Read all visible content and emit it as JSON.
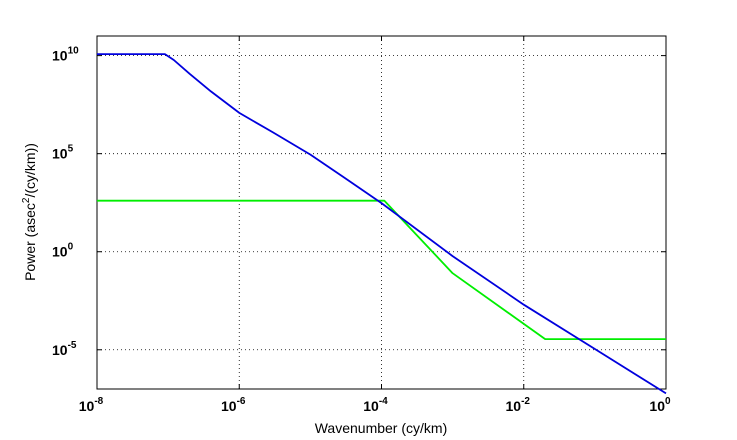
{
  "chart_data": {
    "type": "line",
    "title": "",
    "xlabel": "Wavenumber (cy/km)",
    "ylabel_main": "Power (asec",
    "ylabel_sup": "2",
    "ylabel_rest": "/(cy/km))",
    "x_scale": "log",
    "y_scale": "log",
    "xlim": [
      1e-08,
      1
    ],
    "ylim": [
      1e-07,
      100000000000.0
    ],
    "grid": true,
    "legend": "none",
    "x_ticks": [
      {
        "base": "10",
        "exp": "-8",
        "value": 1e-08
      },
      {
        "base": "10",
        "exp": "-6",
        "value": 1e-06
      },
      {
        "base": "10",
        "exp": "-4",
        "value": 0.0001
      },
      {
        "base": "10",
        "exp": "-2",
        "value": 0.01
      },
      {
        "base": "10",
        "exp": "0",
        "value": 1
      }
    ],
    "y_ticks": [
      {
        "base": "10",
        "exp": "10",
        "value": 10000000000.0
      },
      {
        "base": "10",
        "exp": "5",
        "value": 100000.0
      },
      {
        "base": "10",
        "exp": "0",
        "value": 1
      },
      {
        "base": "10",
        "exp": "-5",
        "value": 1e-05
      }
    ],
    "series": [
      {
        "color": "#0000dd",
        "points": [
          [
            1e-08,
            12000000000.0
          ],
          [
            9e-08,
            12000000000.0
          ],
          [
            1.2e-07,
            6000000000.0
          ],
          [
            2e-07,
            1200000000.0
          ],
          [
            4e-07,
            150000000.0
          ],
          [
            1e-06,
            12000000.0
          ],
          [
            3e-06,
            1200000.0
          ],
          [
            1e-05,
            90000.0
          ],
          [
            3e-05,
            6000
          ],
          [
            0.0001,
            300
          ],
          [
            0.001,
            0.6
          ],
          [
            0.01,
            0.002
          ],
          [
            0.1,
            1.1e-05
          ],
          [
            1,
            6e-08
          ]
        ]
      },
      {
        "color": "#00ee00",
        "points": [
          [
            1e-08,
            400
          ],
          [
            0.00011,
            400
          ],
          [
            0.001,
            0.08
          ],
          [
            0.02,
            3.5e-05
          ],
          [
            1,
            3.5e-05
          ]
        ]
      }
    ]
  },
  "colors": {
    "background": "#ffffff",
    "grid": "#000000",
    "axes": "#000000"
  }
}
